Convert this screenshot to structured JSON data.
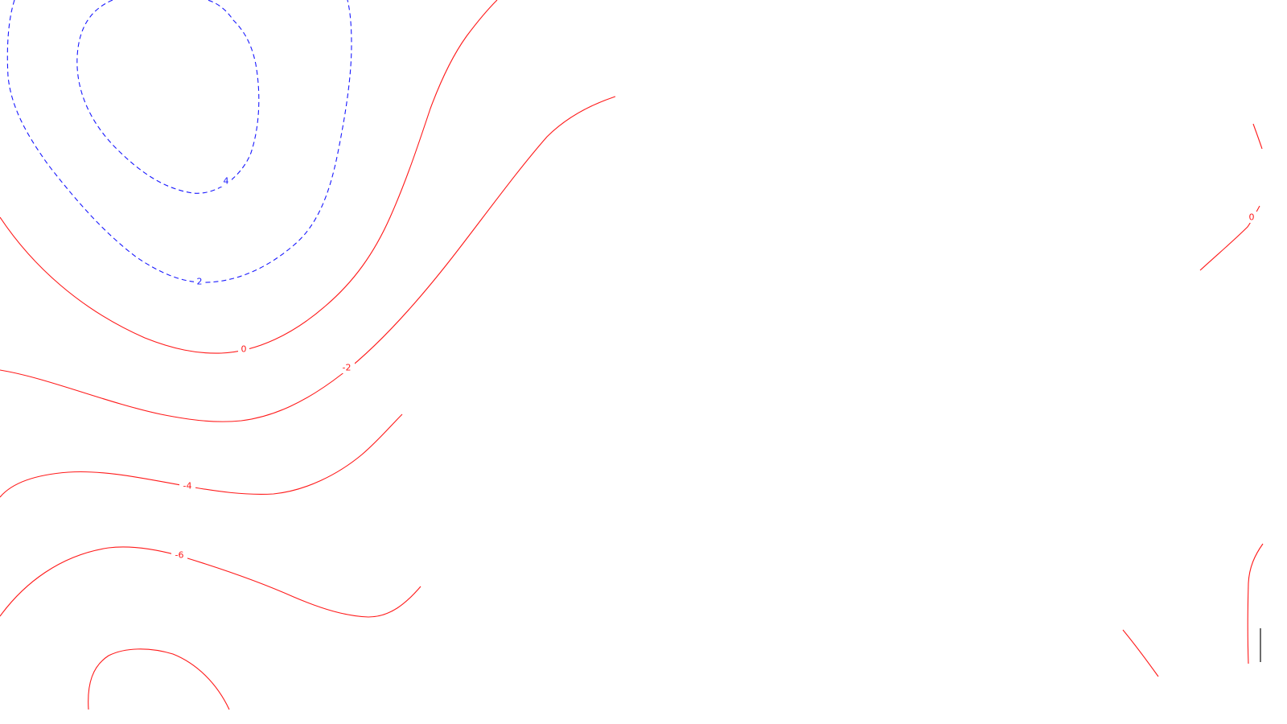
{
  "map": {
    "colors": {
      "background": "#ffffff",
      "positive_contour": "#1a1aff",
      "non_positive_contour": "#ff1a1a"
    },
    "line_styles": {
      "positive": "dashed",
      "non_positive": "solid"
    },
    "contours": [
      {
        "level": 4,
        "label": "4",
        "style": "dashed",
        "color": "#1a1aff"
      },
      {
        "level": 2,
        "label": "2",
        "style": "dashed",
        "color": "#1a1aff"
      },
      {
        "level": 0,
        "label": "0",
        "style": "solid",
        "color": "#ff1a1a"
      },
      {
        "level": -2,
        "label": "-2",
        "style": "solid",
        "color": "#ff1a1a"
      },
      {
        "level": -4,
        "label": "-4",
        "style": "solid",
        "color": "#ff1a1a"
      },
      {
        "level": -6,
        "label": "-6",
        "style": "solid",
        "color": "#ff1a1a"
      }
    ],
    "right_edge_labels": [
      {
        "level": 0,
        "label": "0",
        "color": "#ff1a1a"
      }
    ]
  }
}
